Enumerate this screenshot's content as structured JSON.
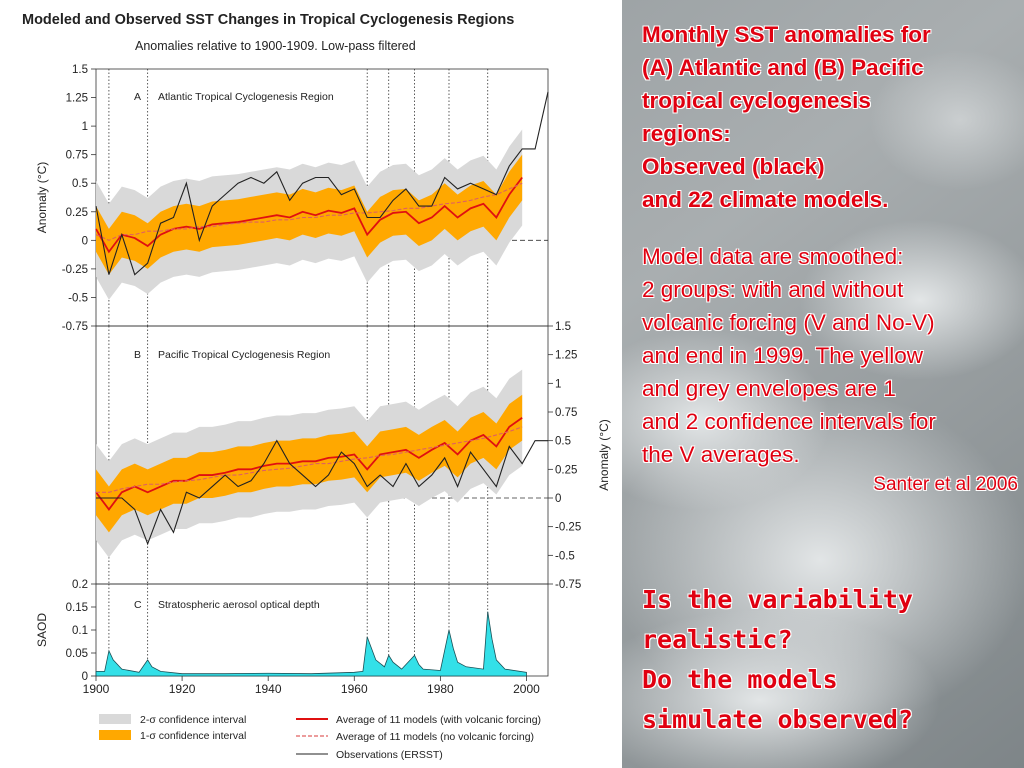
{
  "figure": {
    "title": "Modeled and Observed SST Changes in Tropical Cyclogenesis Regions",
    "subtitle": "Anomalies relative to 1900-1909. Low-pass filtered"
  },
  "notes": {
    "heading_lines": [
      "Monthly SST anomalies for",
      "(A) Atlantic and (B) Pacific",
      "tropical cyclogenesis",
      "regions:",
      "Observed (black)",
      "and 22 climate models."
    ],
    "body_lines": [
      "Model data are smoothed:",
      "2 groups: with and without",
      "volcanic forcing (V and No-V)",
      "and end in 1999. The yellow",
      "and grey envelopes are 1",
      "and 2 confidence intervals for",
      "the V averages."
    ],
    "credit": "Santer et al 2006"
  },
  "question_lines": [
    "Is the variability",
    "realistic?",
    "Do the models",
    "simulate observed?"
  ],
  "colors": {
    "accent_text": "#e00010",
    "envelope_2sigma": "#d9d9d9",
    "envelope_1sigma": "#ffa800",
    "model_volcanic": "#e01010",
    "model_no_volcanic": "#e06060",
    "observations": "#222222",
    "saod_fill": "#33e0e8"
  },
  "chart_data": [
    {
      "type": "line",
      "panel": "A",
      "title": "Atlantic Tropical Cyclogenesis Region",
      "ylabel": "Anomaly (°C)",
      "xlim": [
        1900,
        2005
      ],
      "ylim": [
        -0.75,
        1.5
      ],
      "yticks": [
        "1.5",
        "1.25",
        "1",
        "0.75",
        "0.5",
        "0.25",
        "0",
        "-0.25",
        "-0.5",
        "-0.75"
      ],
      "x": [
        1900,
        1903,
        1906,
        1909,
        1912,
        1915,
        1918,
        1921,
        1924,
        1927,
        1930,
        1933,
        1936,
        1939,
        1942,
        1945,
        1948,
        1951,
        1954,
        1957,
        1960,
        1963,
        1966,
        1969,
        1972,
        1975,
        1978,
        1981,
        1984,
        1987,
        1990,
        1993,
        1996,
        1999,
        2002,
        2005
      ],
      "series": [
        {
          "name": "Observations (ERSST)",
          "values": [
            0.3,
            -0.3,
            0.05,
            -0.3,
            -0.2,
            0.15,
            0.2,
            0.5,
            0.0,
            0.3,
            0.4,
            0.5,
            0.55,
            0.5,
            0.6,
            0.35,
            0.5,
            0.55,
            0.55,
            0.4,
            0.45,
            0.2,
            0.2,
            0.35,
            0.45,
            0.3,
            0.3,
            0.55,
            0.45,
            0.5,
            0.45,
            0.4,
            0.65,
            0.8,
            0.8,
            1.3
          ]
        },
        {
          "name": "Average of 11 models (with volcanic forcing)",
          "values": [
            0.1,
            -0.1,
            0.05,
            0.02,
            -0.05,
            0.05,
            0.1,
            0.12,
            0.1,
            0.14,
            0.15,
            0.16,
            0.18,
            0.2,
            0.22,
            0.2,
            0.25,
            0.22,
            0.26,
            0.24,
            0.28,
            0.05,
            0.18,
            0.24,
            0.25,
            0.15,
            0.2,
            0.3,
            0.2,
            0.28,
            0.32,
            0.2,
            0.4,
            0.55,
            null,
            null
          ]
        },
        {
          "name": "Average of 11 models (no volcanic forcing)",
          "values": [
            0.05,
            0.0,
            0.05,
            0.05,
            0.08,
            0.08,
            0.1,
            0.1,
            0.12,
            0.12,
            0.14,
            0.15,
            0.16,
            0.16,
            0.18,
            0.18,
            0.2,
            0.2,
            0.22,
            0.22,
            0.24,
            0.24,
            0.25,
            0.26,
            0.28,
            0.28,
            0.3,
            0.32,
            0.33,
            0.35,
            0.38,
            0.4,
            0.45,
            0.5,
            null,
            null
          ]
        }
      ]
    },
    {
      "type": "line",
      "panel": "B",
      "title": "Pacific Tropical Cyclogenesis Region",
      "ylabel": "Anomaly (°C)",
      "xlim": [
        1900,
        2005
      ],
      "ylim": [
        -0.75,
        1.5
      ],
      "yticks": [
        "1.5",
        "1.25",
        "1",
        "0.75",
        "0.5",
        "0.25",
        "0",
        "-0.25",
        "-0.5",
        "-0.75"
      ],
      "x": [
        1900,
        1903,
        1906,
        1909,
        1912,
        1915,
        1918,
        1921,
        1924,
        1927,
        1930,
        1933,
        1936,
        1939,
        1942,
        1945,
        1948,
        1951,
        1954,
        1957,
        1960,
        1963,
        1966,
        1969,
        1972,
        1975,
        1978,
        1981,
        1984,
        1987,
        1990,
        1993,
        1996,
        1999,
        2002,
        2005
      ],
      "series": [
        {
          "name": "Observations (ERSST)",
          "values": [
            0.0,
            0.0,
            0.0,
            -0.1,
            -0.4,
            -0.1,
            -0.3,
            0.05,
            0.0,
            0.1,
            0.2,
            0.1,
            0.15,
            0.3,
            0.5,
            0.3,
            0.2,
            0.1,
            0.2,
            0.4,
            0.3,
            0.1,
            0.2,
            0.1,
            0.3,
            0.1,
            0.2,
            0.35,
            0.1,
            0.4,
            0.25,
            0.1,
            0.45,
            0.3,
            0.5,
            0.5
          ]
        },
        {
          "name": "Average of 11 models (with volcanic forcing)",
          "values": [
            0.05,
            -0.1,
            0.05,
            0.1,
            0.05,
            0.1,
            0.15,
            0.15,
            0.2,
            0.2,
            0.22,
            0.25,
            0.25,
            0.28,
            0.3,
            0.3,
            0.32,
            0.32,
            0.35,
            0.36,
            0.38,
            0.25,
            0.38,
            0.4,
            0.42,
            0.35,
            0.42,
            0.48,
            0.38,
            0.5,
            0.55,
            0.45,
            0.62,
            0.7,
            null,
            null
          ]
        },
        {
          "name": "Average of 11 models (no volcanic forcing)",
          "values": [
            0.05,
            0.05,
            0.08,
            0.1,
            0.12,
            0.12,
            0.14,
            0.15,
            0.16,
            0.18,
            0.2,
            0.2,
            0.22,
            0.24,
            0.25,
            0.26,
            0.28,
            0.3,
            0.3,
            0.32,
            0.34,
            0.35,
            0.37,
            0.38,
            0.4,
            0.42,
            0.44,
            0.46,
            0.48,
            0.5,
            0.52,
            0.55,
            0.58,
            0.62,
            null,
            null
          ]
        }
      ]
    },
    {
      "type": "area",
      "panel": "C",
      "title": "Stratospheric aerosol optical depth",
      "ylabel": "SAOD",
      "xlabel": "",
      "xlim": [
        1900,
        2005
      ],
      "ylim": [
        0,
        0.2
      ],
      "yticks": [
        "0.2",
        "0.15",
        "0.1",
        "0.05",
        "0"
      ],
      "xticks": [
        "1900",
        "1920",
        "1940",
        "1960",
        "1980",
        "2000"
      ],
      "eruption_years": [
        1903,
        1912,
        1963,
        1968,
        1974,
        1982,
        1991
      ],
      "x": [
        1900,
        1902,
        1903,
        1904,
        1906,
        1910,
        1912,
        1913,
        1915,
        1920,
        1930,
        1940,
        1950,
        1960,
        1962,
        1963,
        1964,
        1965,
        1967,
        1968,
        1969,
        1971,
        1974,
        1975,
        1976,
        1980,
        1982,
        1983,
        1984,
        1986,
        1990,
        1991,
        1992,
        1993,
        1995,
        2000
      ],
      "values": [
        0.01,
        0.01,
        0.055,
        0.035,
        0.015,
        0.008,
        0.035,
        0.02,
        0.01,
        0.005,
        0.005,
        0.006,
        0.005,
        0.008,
        0.01,
        0.085,
        0.06,
        0.035,
        0.02,
        0.045,
        0.03,
        0.015,
        0.045,
        0.025,
        0.015,
        0.012,
        0.1,
        0.06,
        0.03,
        0.02,
        0.015,
        0.14,
        0.08,
        0.035,
        0.015,
        0.008
      ]
    }
  ],
  "legend": {
    "items": [
      {
        "label": "2-σ confidence interval",
        "kind": "band_grey"
      },
      {
        "label": "1-σ confidence interval",
        "kind": "band_orange"
      },
      {
        "label": "Average of 11 models (with volcanic forcing)",
        "kind": "solid_red"
      },
      {
        "label": "Average of 11 models (no volcanic forcing)",
        "kind": "dashed_red"
      },
      {
        "label": "Observations (ERSST)",
        "kind": "solid_black"
      }
    ]
  }
}
